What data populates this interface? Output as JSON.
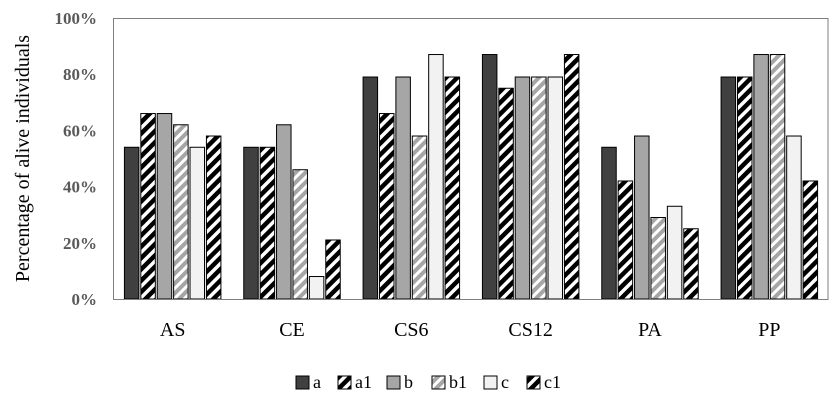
{
  "chart_data": {
    "type": "bar",
    "title": "",
    "xlabel": "",
    "ylabel": "Percentage of alive individuals",
    "ylim": [
      0,
      100
    ],
    "yticks": [
      "0%",
      "20%",
      "40%",
      "60%",
      "80%",
      "100%"
    ],
    "grid": false,
    "legend_position": "bottom",
    "categories": [
      "AS",
      "CE",
      "CS6",
      "CS12",
      "PA",
      "PP"
    ],
    "series": [
      {
        "name": "a",
        "pattern": "solid-dark",
        "color": "#404040",
        "values": [
          54,
          54,
          79,
          87,
          54,
          79
        ]
      },
      {
        "name": "a1",
        "pattern": "hatch-black",
        "color": "#000000",
        "values": [
          66,
          54,
          66,
          75,
          42,
          79
        ]
      },
      {
        "name": "b",
        "pattern": "solid-gray",
        "color": "#a6a6a6",
        "values": [
          66,
          62,
          79,
          79,
          58,
          87
        ]
      },
      {
        "name": "b1",
        "pattern": "hatch-gray",
        "color": "#a6a6a6",
        "values": [
          62,
          46,
          58,
          79,
          29,
          87
        ]
      },
      {
        "name": "c",
        "pattern": "white",
        "color": "#f2f2f2",
        "values": [
          54,
          8,
          87,
          79,
          33,
          58
        ]
      },
      {
        "name": "c1",
        "pattern": "hatch-black",
        "color": "#000000",
        "values": [
          58,
          21,
          79,
          87,
          25,
          42
        ]
      }
    ]
  }
}
